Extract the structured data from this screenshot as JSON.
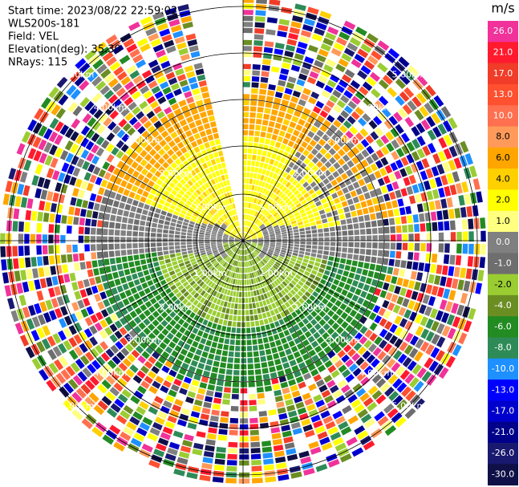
{
  "header": {
    "lines": [
      "Start time: 2023/08/22 22:59:02",
      "WLS200s-181",
      "Field: VEL",
      "Elevation(deg): 35.30",
      "NRays: 115"
    ]
  },
  "colorbar": {
    "unit": "m/s",
    "levels": [
      {
        "label": "26.0",
        "color": "#f0329a"
      },
      {
        "label": "21.0",
        "color": "#ff1a2e"
      },
      {
        "label": "17.0",
        "color": "#f03c28"
      },
      {
        "label": "13.0",
        "color": "#ff5030"
      },
      {
        "label": "10.0",
        "color": "#ff7050"
      },
      {
        "label": "8.0",
        "color": "#ff9a5a"
      },
      {
        "label": "6.0",
        "color": "#ffa500"
      },
      {
        "label": "4.0",
        "color": "#ffd000"
      },
      {
        "label": "2.0",
        "color": "#ffff00"
      },
      {
        "label": "1.0",
        "color": "#ffff80"
      },
      {
        "label": "0.0",
        "color": "#808080"
      },
      {
        "label": "-1.0",
        "color": "#6e6e6e"
      },
      {
        "label": "-2.0",
        "color": "#9acd32"
      },
      {
        "label": "-4.0",
        "color": "#6b8e23"
      },
      {
        "label": "-6.0",
        "color": "#228b22"
      },
      {
        "label": "-8.0",
        "color": "#2e8b57"
      },
      {
        "label": "-10.0",
        "color": "#1e90ff"
      },
      {
        "label": "-13.0",
        "color": "#0000ff"
      },
      {
        "label": "-17.0",
        "color": "#0000cd"
      },
      {
        "label": "-21.0",
        "color": "#00008b"
      },
      {
        "label": "-26.0",
        "color": "#191970"
      },
      {
        "label": "-30.0",
        "color": "#101048"
      }
    ]
  },
  "range_labels": [
    "1.00km",
    "2.00km",
    "3.00km",
    "4.00km",
    "5.00km"
  ]
}
